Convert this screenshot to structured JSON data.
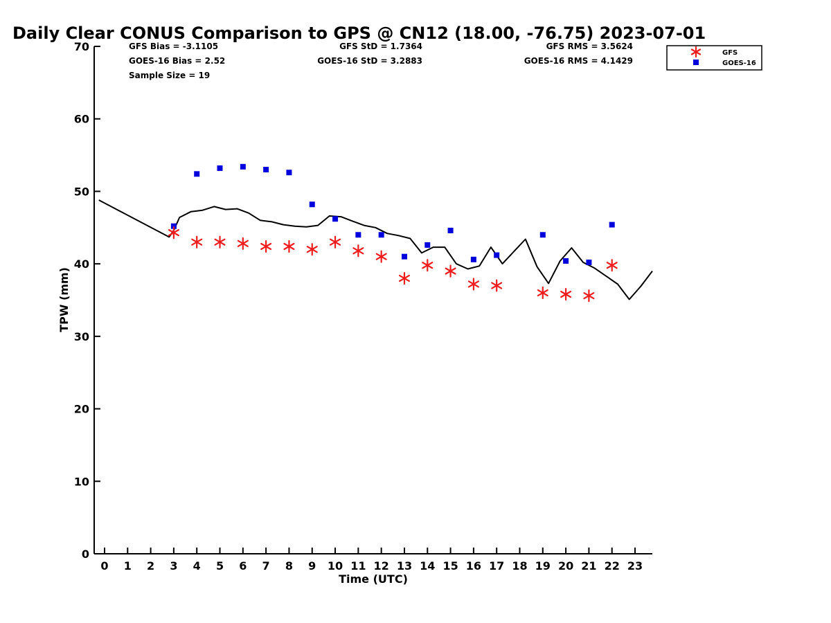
{
  "chart_data": {
    "type": "scatter",
    "title": "Daily Clear CONUS Comparison to GPS @ CN12 (18.00, -76.75) 2023-07-01",
    "xlabel": "Time (UTC)",
    "ylabel": "TPW (mm)",
    "xlim": [
      -0.45,
      23.75
    ],
    "ylim": [
      0,
      70
    ],
    "x_ticks": [
      0,
      1,
      2,
      3,
      4,
      5,
      6,
      7,
      8,
      9,
      10,
      11,
      12,
      13,
      14,
      15,
      16,
      17,
      18,
      19,
      20,
      21,
      22,
      23
    ],
    "x_tick_labels": [
      "0",
      "1",
      "2",
      "3",
      "4",
      "5",
      "6",
      "7",
      "8",
      "9",
      "10",
      "11",
      "12",
      "13",
      "14",
      "15",
      "16",
      "17",
      "18",
      "19",
      "20",
      "21",
      "22",
      "23"
    ],
    "y_ticks": [
      0,
      10,
      20,
      30,
      40,
      50,
      60,
      70
    ],
    "y_tick_labels": [
      "0",
      "10",
      "20",
      "30",
      "40",
      "50",
      "60",
      "70"
    ],
    "grid": false,
    "legend_position": "top-right",
    "stats": {
      "gfs_bias": "GFS Bias = -3.1105",
      "gfs_std": "GFS StD = 1.7364",
      "gfs_rms": "GFS RMS = 3.5624",
      "goes_bias": "GOES-16 Bias = 2.52",
      "goes_std": "GOES-16 StD = 3.2883",
      "goes_rms": "GOES-16 RMS = 4.1429",
      "sample_size": "Sample Size = 19"
    },
    "series": [
      {
        "name": "GFS",
        "marker": "asterisk",
        "color": "#ee1c1c",
        "points": [
          [
            3,
            44.3
          ],
          [
            4,
            43.0
          ],
          [
            5,
            43.0
          ],
          [
            6,
            42.8
          ],
          [
            7,
            42.4
          ],
          [
            8,
            42.4
          ],
          [
            9,
            42.0
          ],
          [
            10,
            43.0
          ],
          [
            11,
            41.8
          ],
          [
            12,
            41.0
          ],
          [
            13,
            38.0
          ],
          [
            14,
            39.8
          ],
          [
            15,
            39.0
          ],
          [
            16,
            37.2
          ],
          [
            17,
            37.0
          ],
          [
            19,
            36.0
          ],
          [
            20,
            35.8
          ],
          [
            21,
            35.6
          ],
          [
            22,
            39.8
          ]
        ]
      },
      {
        "name": "GOES-16",
        "marker": "square",
        "color": "#0000dd",
        "points": [
          [
            3,
            45.2
          ],
          [
            4,
            52.4
          ],
          [
            5,
            53.2
          ],
          [
            6,
            53.4
          ],
          [
            7,
            53.0
          ],
          [
            8,
            52.6
          ],
          [
            9,
            48.2
          ],
          [
            10,
            46.2
          ],
          [
            11,
            44.0
          ],
          [
            12,
            44.0
          ],
          [
            13,
            41.0
          ],
          [
            14,
            42.6
          ],
          [
            15,
            44.6
          ],
          [
            16,
            40.6
          ],
          [
            17,
            41.2
          ],
          [
            19,
            44.0
          ],
          [
            20,
            40.4
          ],
          [
            21,
            40.2
          ],
          [
            22,
            45.4
          ]
        ]
      },
      {
        "type": "line",
        "color": "#000000",
        "points": [
          [
            -0.25,
            48.8
          ],
          [
            2.8,
            43.7
          ],
          [
            3.0,
            44.6
          ],
          [
            3.25,
            46.4
          ],
          [
            3.75,
            47.2
          ],
          [
            4.25,
            47.4
          ],
          [
            4.75,
            47.9
          ],
          [
            5.25,
            47.5
          ],
          [
            5.75,
            47.6
          ],
          [
            6.25,
            47.0
          ],
          [
            6.75,
            46.0
          ],
          [
            7.25,
            45.8
          ],
          [
            7.75,
            45.4
          ],
          [
            8.25,
            45.2
          ],
          [
            8.75,
            45.1
          ],
          [
            9.25,
            45.3
          ],
          [
            9.75,
            46.6
          ],
          [
            10.25,
            46.5
          ],
          [
            10.75,
            45.9
          ],
          [
            11.25,
            45.3
          ],
          [
            11.75,
            45.0
          ],
          [
            12.25,
            44.2
          ],
          [
            12.75,
            43.9
          ],
          [
            13.25,
            43.5
          ],
          [
            13.75,
            41.5
          ],
          [
            14.25,
            42.3
          ],
          [
            14.75,
            42.3
          ],
          [
            15.25,
            40.0
          ],
          [
            15.75,
            39.3
          ],
          [
            16.25,
            39.7
          ],
          [
            16.75,
            42.3
          ],
          [
            17.25,
            40.0
          ],
          [
            18.25,
            43.4
          ],
          [
            18.75,
            39.6
          ],
          [
            19.25,
            37.3
          ],
          [
            19.75,
            40.4
          ],
          [
            20.25,
            42.2
          ],
          [
            20.75,
            40.2
          ],
          [
            21.25,
            39.4
          ],
          [
            21.75,
            38.3
          ],
          [
            22.25,
            37.2
          ],
          [
            22.75,
            35.1
          ],
          [
            23.25,
            36.9
          ],
          [
            23.75,
            39.0
          ]
        ]
      }
    ]
  }
}
